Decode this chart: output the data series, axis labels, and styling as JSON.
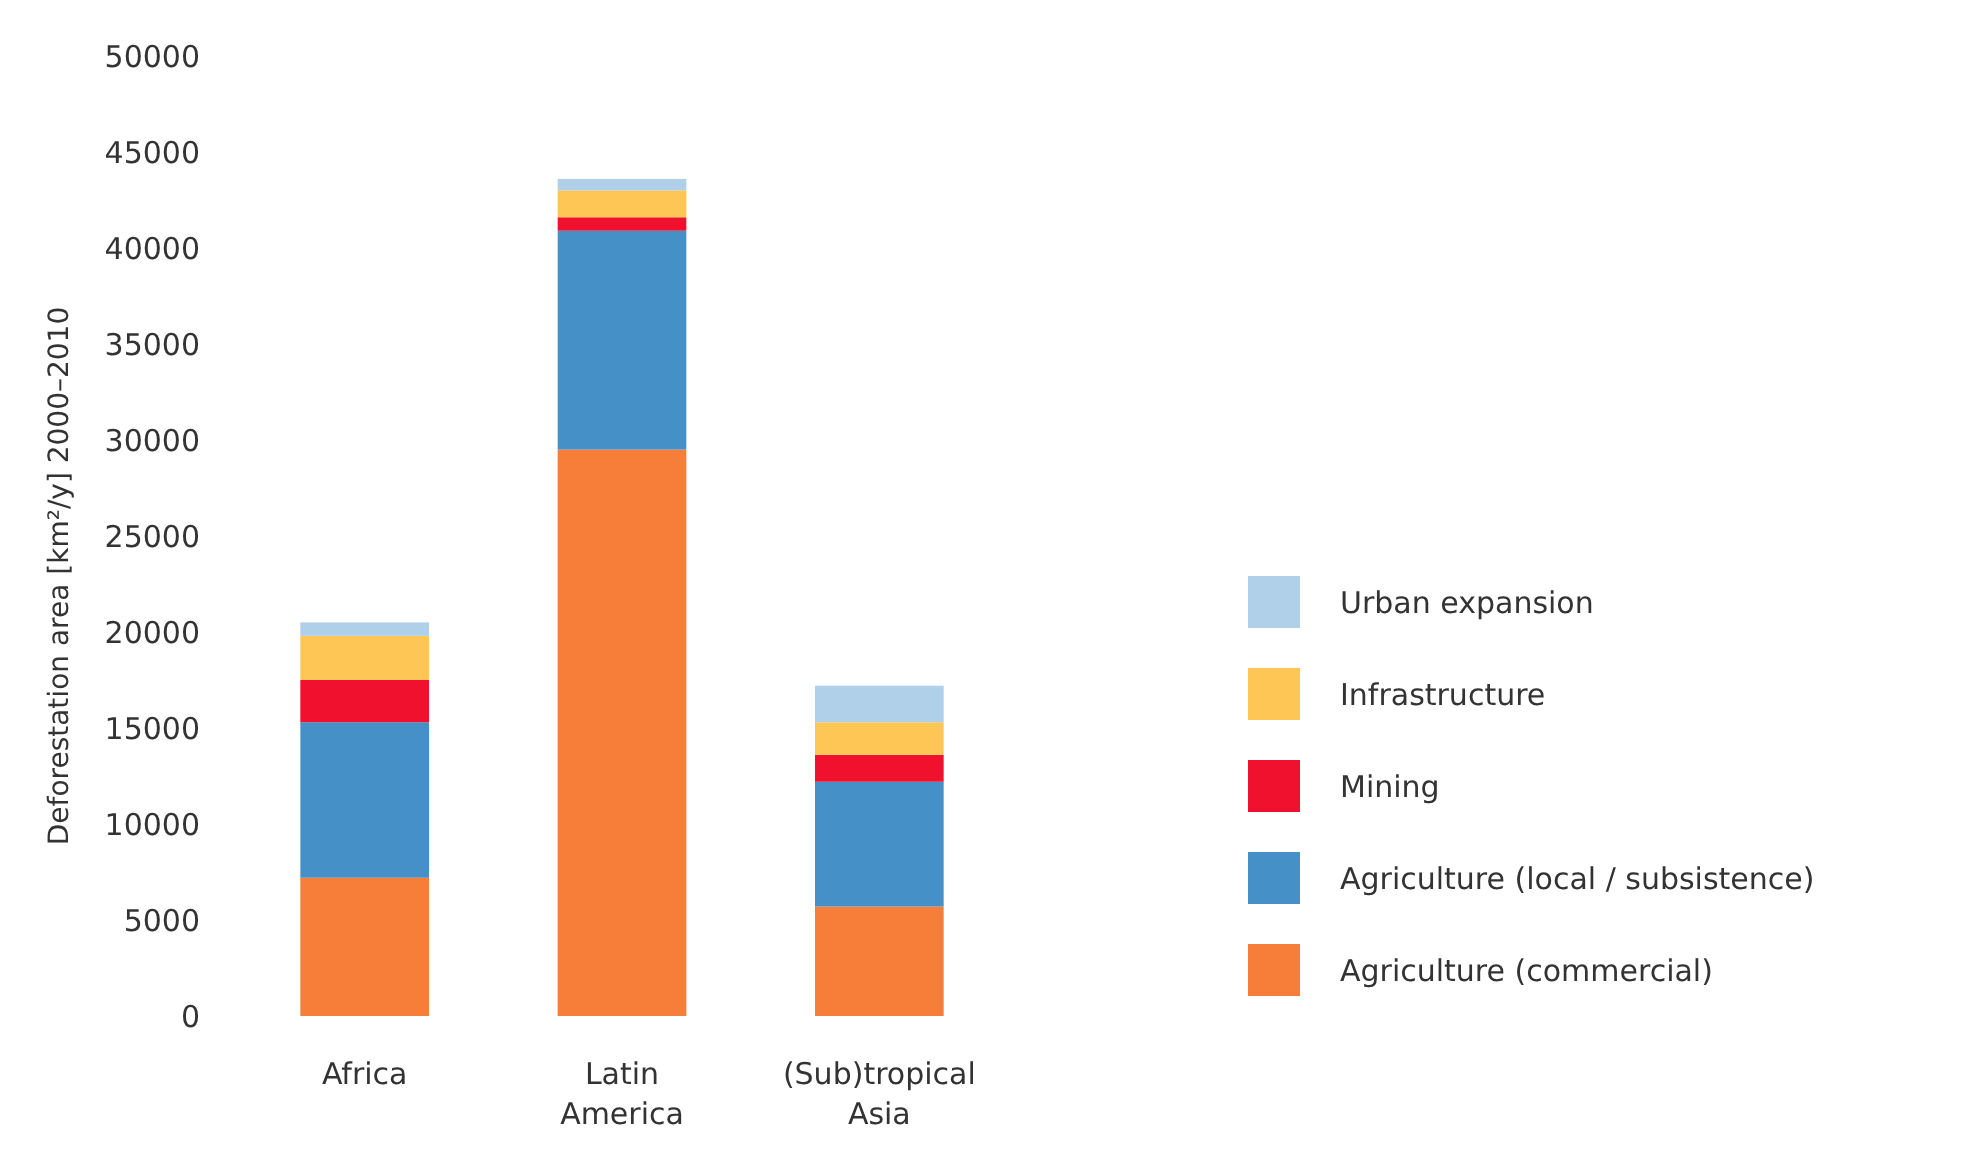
{
  "chart_data": {
    "type": "bar",
    "stacked": true,
    "ylabel": "Deforestation area [km²/y] 2000–2010",
    "categories": [
      "Africa",
      "Latin America",
      "(Sub)tropical Asia"
    ],
    "series": [
      {
        "name": "Agriculture (commercial)",
        "color": "#f77e39",
        "values": [
          7200,
          29500,
          5700
        ]
      },
      {
        "name": "Agriculture (local / subsistence)",
        "color": "#4690c8",
        "values": [
          8100,
          11400,
          6500
        ]
      },
      {
        "name": "Mining",
        "color": "#ef112e",
        "values": [
          2200,
          700,
          1400
        ]
      },
      {
        "name": "Infrastructure",
        "color": "#fec655",
        "values": [
          2300,
          1400,
          1700
        ]
      },
      {
        "name": "Urban expansion",
        "color": "#b0d0ea",
        "values": [
          700,
          600,
          1900
        ]
      }
    ],
    "ylim": [
      0,
      50000
    ],
    "yticks": [
      0,
      5000,
      10000,
      15000,
      20000,
      25000,
      30000,
      35000,
      40000,
      45000,
      50000
    ],
    "legend": "right"
  }
}
